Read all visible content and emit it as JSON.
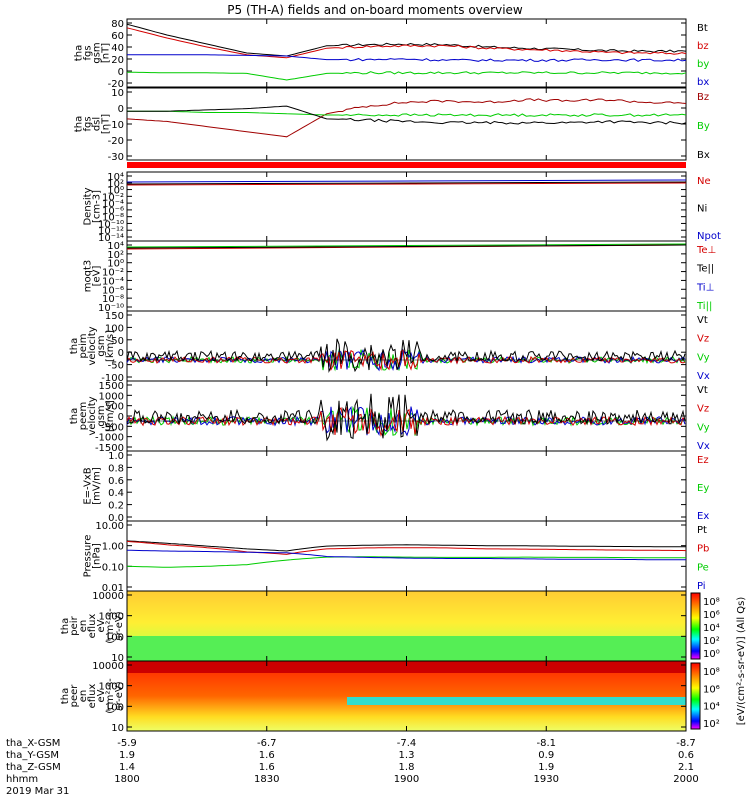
{
  "title": "P5 (TH-A) fields and on-board moments overview",
  "colors": {
    "black": "#000000",
    "red": "#d40000",
    "green": "#00cc00",
    "blue": "#0000cc",
    "darkred": "#a00000"
  },
  "chart_data": [
    {
      "type": "line",
      "ylabel": [
        "tha",
        "fgs",
        "gsm",
        "[nT]"
      ],
      "yticks": [
        "80",
        "60",
        "40",
        "20",
        "0",
        "-20"
      ],
      "ylim": [
        -20,
        80
      ],
      "series": [
        {
          "name": "Bt",
          "color": "black",
          "values": [
            78,
            60,
            45,
            30,
            25,
            42,
            44,
            45,
            44,
            40,
            38,
            36,
            34,
            33,
            33
          ]
        },
        {
          "name": "bz",
          "color": "red",
          "values": [
            72,
            55,
            40,
            27,
            22,
            38,
            41,
            42,
            42,
            38,
            36,
            34,
            31,
            30,
            29
          ]
        },
        {
          "name": "by",
          "color": "green",
          "values": [
            -2,
            -3,
            -3,
            -4,
            -15,
            -4,
            -3,
            -3,
            -3,
            -3,
            -3,
            -3,
            -3,
            -3,
            -3
          ]
        },
        {
          "name": "bx",
          "color": "blue",
          "values": [
            27,
            27,
            27,
            26,
            25,
            19,
            19,
            20,
            18,
            18,
            18,
            18,
            19,
            18,
            18
          ]
        }
      ]
    },
    {
      "type": "line",
      "ylabel": [
        "tha",
        "fgs",
        "dsl",
        "[nT]"
      ],
      "yticks": [
        "10",
        "0",
        "-10",
        "-20",
        "-30"
      ],
      "ylim": [
        -35,
        15
      ],
      "series": [
        {
          "name": "Bz",
          "color": "darkred",
          "values": [
            -6,
            -8,
            -12,
            -16,
            -20,
            -2,
            4,
            7,
            8,
            7,
            9,
            8,
            9,
            7,
            6
          ]
        },
        {
          "name": "By",
          "color": "green",
          "values": [
            0,
            0,
            -1,
            -1,
            -2,
            -3,
            -3,
            -3,
            -3,
            -3,
            -3,
            -3,
            -3,
            -3,
            -3
          ]
        },
        {
          "name": "Bx",
          "color": "black",
          "values": [
            0,
            0,
            1,
            2,
            4,
            -6,
            -7,
            -8,
            -9,
            -9,
            -9,
            -9,
            -8,
            -9,
            -9
          ]
        }
      ]
    },
    {
      "type": "line",
      "ylabel": [
        "Density",
        "[cm-3]"
      ],
      "yticks": [
        "10⁴",
        "10²",
        "10⁰",
        "10⁻²",
        "10⁻⁴",
        "10⁻⁶",
        "10⁻⁸",
        "10⁻¹⁰",
        "10⁻¹²",
        "10⁻¹⁴"
      ],
      "legend": [
        {
          "name": "Ne",
          "color": "red"
        },
        {
          "name": "Ni",
          "color": "black"
        },
        {
          "name": "Npot",
          "color": "blue"
        }
      ]
    },
    {
      "type": "line",
      "ylabel": [
        "moqt3",
        "[eV]"
      ],
      "yticks": [
        "10⁴",
        "10²",
        "10⁰",
        "10⁻²",
        "10⁻⁴",
        "10⁻⁶",
        "10⁻⁸",
        "10⁻¹⁰"
      ],
      "legend": [
        {
          "name": "Te⊥",
          "color": "red"
        },
        {
          "name": "Te||",
          "color": "black"
        },
        {
          "name": "Ti⊥",
          "color": "blue"
        },
        {
          "name": "Ti||",
          "color": "green"
        }
      ]
    },
    {
      "type": "line",
      "ylabel": [
        "tha",
        "peim",
        "velocity",
        "gsm",
        "[km/s]"
      ],
      "yticks": [
        "150",
        "100",
        "50",
        "0",
        "-50",
        "-100"
      ],
      "ylim": [
        -100,
        150
      ],
      "legend": [
        {
          "name": "Vt",
          "color": "black"
        },
        {
          "name": "Vz",
          "color": "red"
        },
        {
          "name": "Vy",
          "color": "green"
        },
        {
          "name": "Vx",
          "color": "blue"
        }
      ]
    },
    {
      "type": "line",
      "ylabel": [
        "tha",
        "peem",
        "velocity",
        "gsm",
        "[km/s]"
      ],
      "yticks": [
        "1500",
        "1000",
        "500",
        "0",
        "-500",
        "-1000",
        "-1500"
      ],
      "ylim": [
        -1500,
        1500
      ],
      "legend": [
        {
          "name": "Vt",
          "color": "black"
        },
        {
          "name": "Vz",
          "color": "red"
        },
        {
          "name": "Vy",
          "color": "green"
        },
        {
          "name": "Vx",
          "color": "blue"
        }
      ]
    },
    {
      "type": "line",
      "ylabel": [
        "E=-VxB",
        "[mV/m]"
      ],
      "yticks": [
        "1.0",
        "0.8",
        "0.6",
        "0.4",
        "0.2",
        "0.0"
      ],
      "ylim": [
        0,
        1
      ],
      "legend": [
        {
          "name": "Ez",
          "color": "red"
        },
        {
          "name": "Ey",
          "color": "green"
        },
        {
          "name": "Ex",
          "color": "blue"
        }
      ]
    },
    {
      "type": "line",
      "ylabel": [
        "Pressure",
        "[nPa]"
      ],
      "yticks": [
        "10.00",
        "1.00",
        "0.10",
        "0.01"
      ],
      "series": [
        {
          "name": "Pt",
          "color": "black",
          "values": [
            1.7,
            1.3,
            0.95,
            0.7,
            0.55,
            0.95,
            1.05,
            1.1,
            1.05,
            1.0,
            0.98,
            0.95,
            0.92,
            0.9,
            0.88
          ]
        },
        {
          "name": "Pb",
          "color": "red",
          "values": [
            1.6,
            1.1,
            0.8,
            0.5,
            0.38,
            0.7,
            0.78,
            0.8,
            0.78,
            0.7,
            0.68,
            0.65,
            0.62,
            0.6,
            0.58
          ]
        },
        {
          "name": "Pe",
          "color": "green",
          "values": [
            0.1,
            0.09,
            0.1,
            0.12,
            0.2,
            0.28,
            0.29,
            0.28,
            0.27,
            0.27,
            0.28,
            0.27,
            0.27,
            0.26,
            0.26
          ]
        },
        {
          "name": "Pi",
          "color": "blue",
          "values": [
            0.6,
            0.55,
            0.52,
            0.48,
            0.45,
            0.3,
            0.27,
            0.25,
            0.24,
            0.24,
            0.23,
            0.22,
            0.22,
            0.21,
            0.21
          ]
        }
      ]
    },
    {
      "type": "heatmap",
      "ylabel": [
        "tha",
        "peir",
        "en",
        "eflux",
        "eV",
        "(cm²-s-",
        "sr-eV)"
      ],
      "yticks": [
        "10000",
        "1000",
        "100",
        "10"
      ]
    },
    {
      "type": "heatmap",
      "ylabel": [
        "tha",
        "peer",
        "en",
        "eflux",
        "eV",
        "(cm²-s-",
        "sr-eV)"
      ],
      "yticks": [
        "10000",
        "1000",
        "100",
        "10"
      ]
    }
  ],
  "colorbar": {
    "label": "[eV/(cm²-s-sr-eV)] (All Qs)",
    "ticks_top": [
      "10⁸",
      "10⁶",
      "10⁴",
      "10²",
      "10⁰"
    ],
    "ticks_bottom": [
      "10⁸",
      "10⁶",
      "10⁴",
      "10²"
    ]
  },
  "xaxis": {
    "row_labels": [
      "tha_X-GSM",
      "tha_Y-GSM",
      "tha_Z-GSM",
      "hhmm"
    ],
    "columns": [
      {
        "X": "-5.9",
        "Y": "1.9",
        "Z": "1.4",
        "hhmm": "1800"
      },
      {
        "X": "-6.7",
        "Y": "1.6",
        "Z": "1.6",
        "hhmm": "1830"
      },
      {
        "X": "-7.4",
        "Y": "1.3",
        "Z": "1.8",
        "hhmm": "1900"
      },
      {
        "X": "-8.1",
        "Y": "0.9",
        "Z": "1.9",
        "hhmm": "1930"
      },
      {
        "X": "-8.7",
        "Y": "0.6",
        "Z": "2.1",
        "hhmm": "2000"
      }
    ],
    "date": "2019 Mar 31"
  }
}
